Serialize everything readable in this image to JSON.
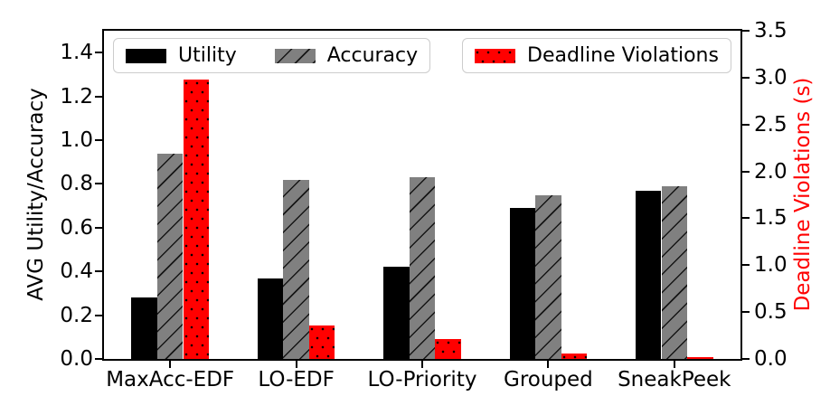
{
  "figure": {
    "background": "#ffffff",
    "spine_color": "#000000",
    "left_axis": {
      "label": "AVG Utility/Accuracy",
      "label_color": "#000000",
      "tick_color": "#000000",
      "ticks": [
        0.0,
        0.2,
        0.4,
        0.6,
        0.8,
        1.0,
        1.2,
        1.4
      ],
      "max": 1.5
    },
    "right_axis": {
      "label": "Deadline Violations (s)",
      "label_color": "#ff0000",
      "tick_color": "#000000",
      "ticks": [
        0.0,
        0.5,
        1.0,
        1.5,
        2.0,
        2.5,
        3.0,
        3.5
      ],
      "max": 3.5
    }
  },
  "chart_data": {
    "type": "bar",
    "categories": [
      "MaxAcc-EDF",
      "LO-EDF",
      "LO-Priority",
      "Grouped",
      "SneakPeek"
    ],
    "series": [
      {
        "name": "Utility",
        "axis": "left",
        "color": "#000000",
        "hatch": "none",
        "values": [
          0.28,
          0.37,
          0.42,
          0.69,
          0.77
        ]
      },
      {
        "name": "Accuracy",
        "axis": "left",
        "color": "#808080",
        "hatch": "diagonal",
        "values": [
          0.94,
          0.82,
          0.83,
          0.75,
          0.79
        ]
      },
      {
        "name": "Deadline Violations",
        "axis": "right",
        "color": "#ff0000",
        "hatch": "dots",
        "values": [
          2.98,
          0.36,
          0.21,
          0.06,
          0.02
        ]
      }
    ],
    "title": "",
    "xlabel": "",
    "ylabel_left": "AVG Utility/Accuracy",
    "ylabel_right": "Deadline Violations (s)",
    "ylim_left": [
      0,
      1.5
    ],
    "ylim_right": [
      0,
      3.5
    ],
    "grid": false,
    "legend_position": "top",
    "legend_boxes": [
      [
        0,
        1
      ],
      [
        2
      ]
    ],
    "bar_width_fraction": 0.0406,
    "group_offset": 0.525,
    "group_span": 5.05
  }
}
